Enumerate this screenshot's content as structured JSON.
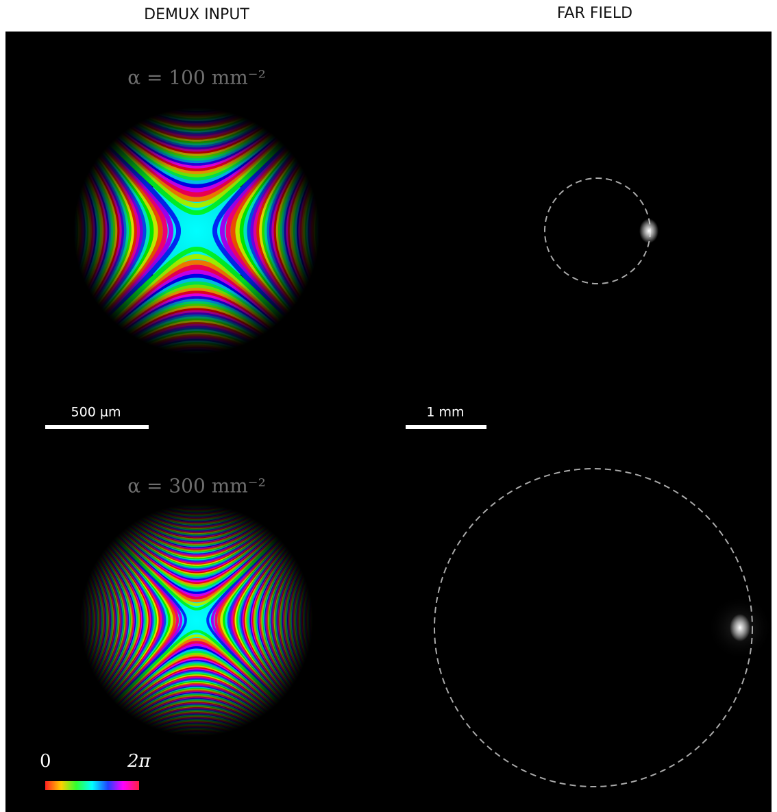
{
  "headers": {
    "left": "DEMUX INPUT",
    "right": "FAR FIELD"
  },
  "panels": [
    {
      "label": "α = 100 mm⁻²"
    },
    {
      "label": "α = 300 mm⁻²"
    }
  ],
  "scale_bars": {
    "input": "500 µm",
    "far_field": "1 mm"
  },
  "colorbar": {
    "min_label": "0",
    "max_label": "2π"
  }
}
